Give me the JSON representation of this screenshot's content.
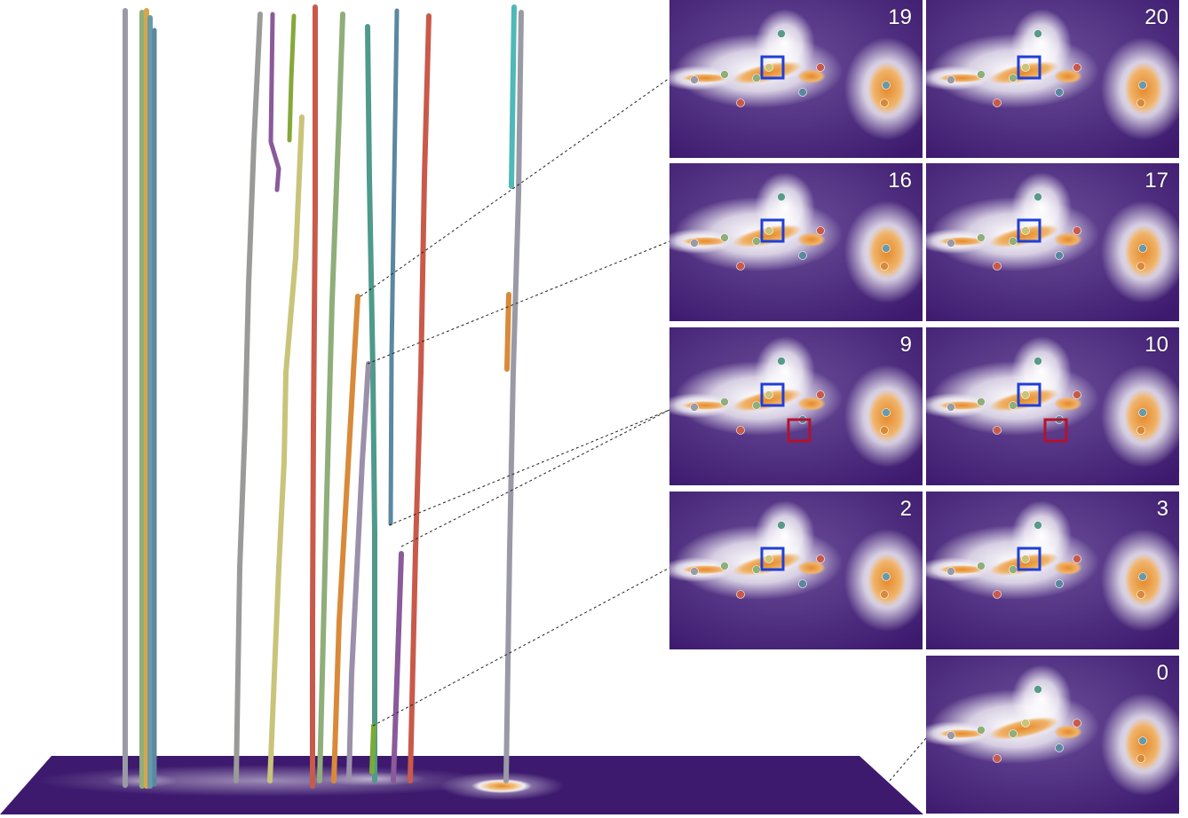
{
  "panels": [
    {
      "label": "19",
      "col": 0,
      "row": 0,
      "blue_box": true,
      "red_box": false
    },
    {
      "label": "20",
      "col": 1,
      "row": 0,
      "blue_box": true,
      "red_box": false
    },
    {
      "label": "16",
      "col": 0,
      "row": 1,
      "blue_box": true,
      "red_box": false
    },
    {
      "label": "17",
      "col": 1,
      "row": 1,
      "blue_box": true,
      "red_box": false
    },
    {
      "label": "9",
      "col": 0,
      "row": 2,
      "blue_box": true,
      "red_box": true
    },
    {
      "label": "10",
      "col": 1,
      "row": 2,
      "blue_box": true,
      "red_box": true
    },
    {
      "label": "2",
      "col": 0,
      "row": 3,
      "blue_box": true,
      "red_box": false
    },
    {
      "label": "3",
      "col": 1,
      "row": 3,
      "blue_box": true,
      "red_box": false
    },
    {
      "label": "0",
      "col": 1,
      "row": 4,
      "blue_box": false,
      "red_box": false
    }
  ],
  "colors": {
    "background": "#ffffff",
    "field_dark": "#3d1a6e",
    "field_mid": "#6b4e9a",
    "field_light": "#ffffff",
    "field_hot": "#e58a2a",
    "blue_box": "#1f3fd6",
    "red_box": "#b3122c",
    "leader_line": "#222222"
  },
  "tracks": [
    {
      "color": "#9a9aa6"
    },
    {
      "color": "#d7a64a"
    },
    {
      "color": "#6a9aa8"
    },
    {
      "color": "#9a9a98"
    },
    {
      "color": "#8a5a9a"
    },
    {
      "color": "#86a83a"
    },
    {
      "color": "#c9c47a"
    },
    {
      "color": "#c95a4a"
    },
    {
      "color": "#8fae7a"
    },
    {
      "color": "#4f9a8a"
    },
    {
      "color": "#5a88a0"
    },
    {
      "color": "#d87a3a"
    },
    {
      "color": "#c95a4a"
    },
    {
      "color": "#9a90aa"
    },
    {
      "color": "#4fb8b8"
    },
    {
      "color": "#d88a3a"
    },
    {
      "color": "#8a5a9a"
    },
    {
      "color": "#7aaa3a"
    }
  ]
}
